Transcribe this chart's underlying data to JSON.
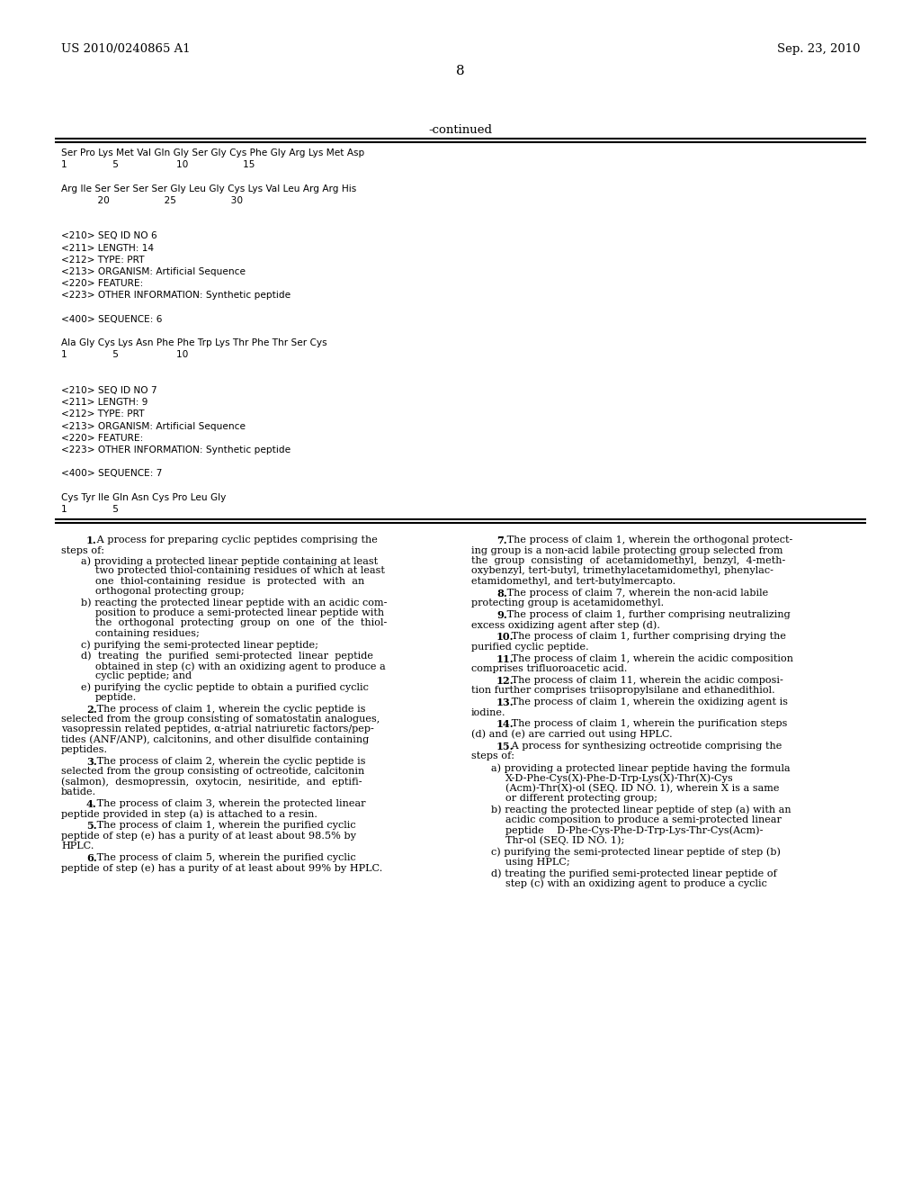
{
  "header_left": "US 2010/0240865 A1",
  "header_right": "Sep. 23, 2010",
  "page_number": "8",
  "continued_label": "-continued",
  "background_color": "#ffffff",
  "text_color": "#000000",
  "monospace_lines": [
    "Ser Pro Lys Met Val Gln Gly Ser Gly Cys Phe Gly Arg Lys Met Asp",
    "1               5                   10                  15",
    "",
    "Arg Ile Ser Ser Ser Ser Gly Leu Gly Cys Lys Val Leu Arg Arg His",
    "            20                  25                  30",
    "",
    "",
    "<210> SEQ ID NO 6",
    "<211> LENGTH: 14",
    "<212> TYPE: PRT",
    "<213> ORGANISM: Artificial Sequence",
    "<220> FEATURE:",
    "<223> OTHER INFORMATION: Synthetic peptide",
    "",
    "<400> SEQUENCE: 6",
    "",
    "Ala Gly Cys Lys Asn Phe Phe Trp Lys Thr Phe Thr Ser Cys",
    "1               5                   10",
    "",
    "",
    "<210> SEQ ID NO 7",
    "<211> LENGTH: 9",
    "<212> TYPE: PRT",
    "<213> ORGANISM: Artificial Sequence",
    "<220> FEATURE:",
    "<223> OTHER INFORMATION: Synthetic peptide",
    "",
    "<400> SEQUENCE: 7",
    "",
    "Cys Tyr Ile Gln Asn Cys Pro Leu Gly",
    "1               5"
  ],
  "claims_left": [
    {
      "type": "claim_start",
      "number": "1",
      "first_line": "1. A process for preparing cyclic peptides comprising the",
      "cont": "steps of:"
    },
    {
      "type": "sub",
      "letter": "a",
      "lines": [
        "a) providing a protected linear peptide containing at least",
        "two protected thiol-containing residues of which at least",
        "one  thiol-containing  residue  is  protected  with  an",
        "orthogonal protecting group;"
      ]
    },
    {
      "type": "sub",
      "letter": "b",
      "lines": [
        "b) reacting the protected linear peptide with an acidic com-",
        "position to produce a semi-protected linear peptide with",
        "the  orthogonal  protecting  group  on  one  of  the  thiol-",
        "containing residues;"
      ]
    },
    {
      "type": "sub",
      "letter": "c",
      "lines": [
        "c) purifying the semi-protected linear peptide;"
      ]
    },
    {
      "type": "sub",
      "letter": "d",
      "lines": [
        "d)  treating  the  purified  semi-protected  linear  peptide",
        "obtained in step (c) with an oxidizing agent to produce a",
        "cyclic peptide; and"
      ]
    },
    {
      "type": "sub",
      "letter": "e",
      "lines": [
        "e) purifying the cyclic peptide to obtain a purified cyclic",
        "peptide."
      ]
    },
    {
      "type": "claim_block",
      "number": "2",
      "lines": [
        "2. The process of claim 1, wherein the cyclic peptide is",
        "selected from the group consisting of somatostatin analogues,",
        "vasopressin related peptides, α-atrial natriuretic factors/pep-",
        "tides (ANF/ANP), calcitonins, and other disulfide containing",
        "peptides."
      ]
    },
    {
      "type": "claim_block",
      "number": "3",
      "lines": [
        "3. The process of claim 2, wherein the cyclic peptide is",
        "selected from the group consisting of octreotide, calcitonin",
        "(salmon),  desmopressin,  oxytocin,  nesiritide,  and  eptifi-",
        "batide."
      ]
    },
    {
      "type": "claim_block",
      "number": "4",
      "lines": [
        "4. The process of claim 3, wherein the protected linear",
        "peptide provided in step (a) is attached to a resin."
      ]
    },
    {
      "type": "claim_block",
      "number": "5",
      "lines": [
        "5. The process of claim 1, wherein the purified cyclic",
        "peptide of step (e) has a purity of at least about 98.5% by",
        "HPLC."
      ]
    },
    {
      "type": "claim_block",
      "number": "6",
      "lines": [
        "6. The process of claim 5, wherein the purified cyclic",
        "peptide of step (e) has a purity of at least about 99% by HPLC."
      ]
    }
  ],
  "claims_right": [
    {
      "type": "claim_block",
      "number": "7",
      "lines": [
        "7. The process of claim 1, wherein the orthogonal protect-",
        "ing group is a non-acid labile protecting group selected from",
        "the  group  consisting  of  acetamidomethyl,  benzyl,  4-meth-",
        "oxybenzyl, tert-butyl, trimethylacetamidomethyl, phenylac-",
        "etamidomethyl, and tert-butylmercapto."
      ]
    },
    {
      "type": "claim_block",
      "number": "8",
      "lines": [
        "8. The process of claim 7, wherein the non-acid labile",
        "protecting group is acetamidomethyl."
      ]
    },
    {
      "type": "claim_block",
      "number": "9",
      "lines": [
        "9. The process of claim 1, further comprising neutralizing",
        "excess oxidizing agent after step (d)."
      ]
    },
    {
      "type": "claim_block",
      "number": "10",
      "lines": [
        "10. The process of claim 1, further comprising drying the",
        "purified cyclic peptide."
      ]
    },
    {
      "type": "claim_block",
      "number": "11",
      "lines": [
        "11. The process of claim 1, wherein the acidic composition",
        "comprises trifluoroacetic acid."
      ]
    },
    {
      "type": "claim_block",
      "number": "12",
      "lines": [
        "12. The process of claim 11, wherein the acidic composi-",
        "tion further comprises triisopropylsilane and ethanedithiol."
      ]
    },
    {
      "type": "claim_block",
      "number": "13",
      "lines": [
        "13. The process of claim 1, wherein the oxidizing agent is",
        "iodine."
      ]
    },
    {
      "type": "claim_block",
      "number": "14",
      "lines": [
        "14. The process of claim 1, wherein the purification steps",
        "(d) and (e) are carried out using HPLC."
      ]
    },
    {
      "type": "claim_block",
      "number": "15",
      "lines": [
        "15. A process for synthesizing octreotide comprising the",
        "steps of:"
      ]
    },
    {
      "type": "sub",
      "letter": "a",
      "lines": [
        "a) providing a protected linear peptide having the formula",
        "X-D-Phe-Cys(X)-Phe-D-Trp-Lys(X)-Thr(X)-Cys",
        "(Acm)-Thr(X)-ol (SEQ. ID NO. 1), wherein X is a same",
        "or different protecting group;"
      ]
    },
    {
      "type": "sub",
      "letter": "b",
      "lines": [
        "b) reacting the protected linear peptide of step (a) with an",
        "acidic composition to produce a semi-protected linear",
        "peptide    D-Phe-Cys-Phe-D-Trp-Lys-Thr-Cys(Acm)-",
        "Thr-ol (SEQ. ID NO. 1);"
      ]
    },
    {
      "type": "sub",
      "letter": "c",
      "lines": [
        "c) purifying the semi-protected linear peptide of step (b)",
        "using HPLC;"
      ]
    },
    {
      "type": "sub",
      "letter": "d",
      "lines": [
        "d) treating the purified semi-protected linear peptide of",
        "step (c) with an oxidizing agent to produce a cyclic"
      ]
    }
  ]
}
